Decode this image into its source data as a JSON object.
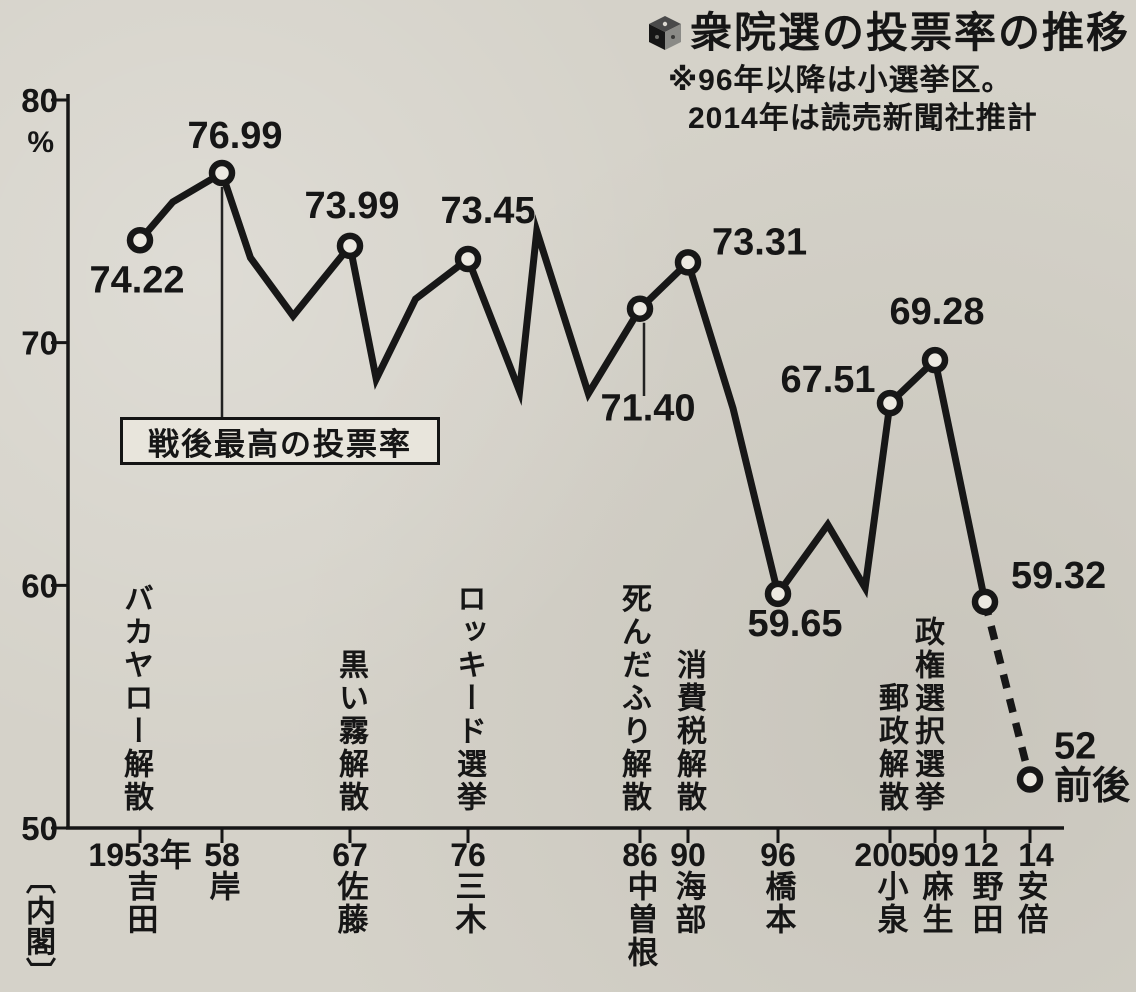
{
  "page": {
    "colors": {
      "ink": "#161616",
      "paper": "#d5d2c9",
      "marker_fill": "#ece9e1"
    }
  },
  "header": {
    "title": "衆院選の投票率の推移",
    "note_line1": "※96年以降は小選挙区。",
    "note_line2": "2014年は読売新聞社推計"
  },
  "chart_data": {
    "type": "line",
    "title": "衆院選の投票率の推移",
    "ylabel": "%",
    "ylim": [
      50,
      80
    ],
    "yticks": [
      80,
      70,
      60,
      50
    ],
    "grid": false,
    "legend": "none",
    "annotation": "戦後最高の投票率",
    "dashed_from_year": 2012,
    "series": [
      {
        "name": "衆院選投票率",
        "points": [
          {
            "year": 1953,
            "value": 74.22,
            "label": "74.22",
            "marker": true
          },
          {
            "year": 1955,
            "value": 75.8
          },
          {
            "year": 1958,
            "value": 76.99,
            "label": "76.99",
            "marker": true
          },
          {
            "year": 1960,
            "value": 73.5
          },
          {
            "year": 1963,
            "value": 71.1
          },
          {
            "year": 1967,
            "value": 73.99,
            "label": "73.99",
            "marker": true
          },
          {
            "year": 1969,
            "value": 68.5
          },
          {
            "year": 1972,
            "value": 71.8
          },
          {
            "year": 1976,
            "value": 73.45,
            "label": "73.45",
            "marker": true
          },
          {
            "year": 1979,
            "value": 68.0
          },
          {
            "year": 1980,
            "value": 74.6
          },
          {
            "year": 1983,
            "value": 67.9
          },
          {
            "year": 1986,
            "value": 71.4,
            "label": "71.40",
            "marker": true
          },
          {
            "year": 1990,
            "value": 73.31,
            "label": "73.31",
            "marker": true
          },
          {
            "year": 1993,
            "value": 67.3
          },
          {
            "year": 1996,
            "value": 59.65,
            "label": "59.65",
            "marker": true
          },
          {
            "year": 2000,
            "value": 62.5
          },
          {
            "year": 2003,
            "value": 59.9
          },
          {
            "year": 2005,
            "value": 67.51,
            "label": "67.51",
            "marker": true
          },
          {
            "year": 2009,
            "value": 69.28,
            "label": "69.28",
            "marker": true
          },
          {
            "year": 2012,
            "value": 59.32,
            "label": "59.32",
            "marker": true
          },
          {
            "year": 2014,
            "value": 52,
            "label": "52前後",
            "label_lines": [
              "52",
              "前後"
            ],
            "marker": true,
            "estimated": true
          }
        ]
      }
    ],
    "x_axis_labels": [
      {
        "year": 1953,
        "label": "1953年"
      },
      {
        "year": 1958,
        "label": "58"
      },
      {
        "year": 1967,
        "label": "67"
      },
      {
        "year": 1976,
        "label": "76"
      },
      {
        "year": 1986,
        "label": "86"
      },
      {
        "year": 1990,
        "label": "90"
      },
      {
        "year": 1996,
        "label": "96"
      },
      {
        "year": 2005,
        "label": "2005"
      },
      {
        "year": 2009,
        "label": "09"
      },
      {
        "year": 2012,
        "label": "12"
      },
      {
        "year": 2014,
        "label": "14"
      }
    ],
    "events": [
      {
        "year": 1953,
        "label": "バカヤロー解散"
      },
      {
        "year": 1967,
        "label": "黒い霧解散"
      },
      {
        "year": 1976,
        "label": "ロッキード選挙"
      },
      {
        "year": 1986,
        "label": "死んだふり解散"
      },
      {
        "year": 1990,
        "label": "消費税解散"
      },
      {
        "year": 2005,
        "label": "郵政解散"
      },
      {
        "year": 2009,
        "label": "政権選択選挙"
      }
    ],
    "cabinet_header": "〔内閣〕",
    "cabinets": [
      {
        "year": 1953,
        "label": "吉田"
      },
      {
        "year": 1958,
        "label": "岸"
      },
      {
        "year": 1967,
        "label": "佐藤"
      },
      {
        "year": 1976,
        "label": "三木"
      },
      {
        "year": 1986,
        "label": "中曽根"
      },
      {
        "year": 1990,
        "label": "海部"
      },
      {
        "year": 1996,
        "label": "橋本"
      },
      {
        "year": 2005,
        "label": "小泉"
      },
      {
        "year": 2009,
        "label": "麻生"
      },
      {
        "year": 2012,
        "label": "野田"
      },
      {
        "year": 2014,
        "label": "安倍"
      }
    ]
  }
}
